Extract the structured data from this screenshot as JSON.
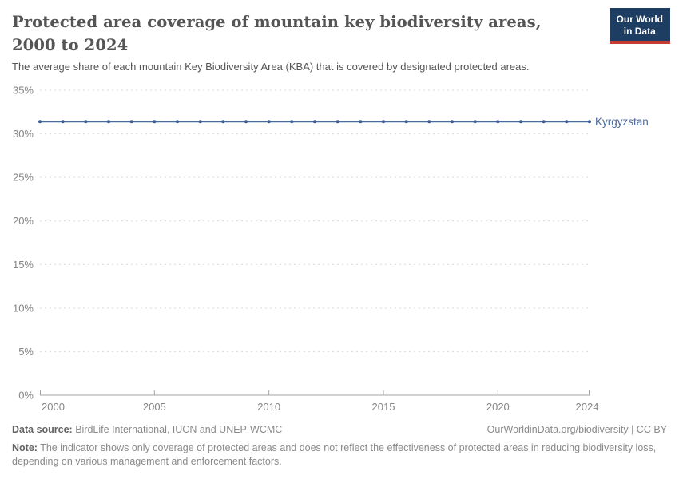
{
  "header": {
    "title": "Protected area coverage of mountain key biodiversity areas, 2000 to 2024",
    "subtitle": "The average share of each mountain Key Biodiversity Area (KBA) that is covered by designated protected areas.",
    "logo": {
      "line1": "Our World",
      "line2": "in Data"
    }
  },
  "chart_data": {
    "type": "line",
    "title": "Protected area coverage of mountain key biodiversity areas, 2000 to 2024",
    "xlabel": "",
    "ylabel": "",
    "x": [
      2000,
      2001,
      2002,
      2003,
      2004,
      2005,
      2006,
      2007,
      2008,
      2009,
      2010,
      2011,
      2012,
      2013,
      2014,
      2015,
      2016,
      2017,
      2018,
      2019,
      2020,
      2021,
      2022,
      2023,
      2024
    ],
    "series": [
      {
        "name": "Kyrgyzstan",
        "values": [
          31.4,
          31.4,
          31.4,
          31.4,
          31.4,
          31.4,
          31.4,
          31.4,
          31.4,
          31.4,
          31.4,
          31.4,
          31.4,
          31.4,
          31.4,
          31.4,
          31.4,
          31.4,
          31.4,
          31.4,
          31.4,
          31.4,
          31.4,
          31.4,
          31.4
        ]
      }
    ],
    "ylim": [
      0,
      35
    ],
    "yticks": [
      0,
      5,
      10,
      15,
      20,
      25,
      30,
      35
    ],
    "ytick_suffix": "%",
    "xticks": [
      2000,
      2005,
      2010,
      2015,
      2020,
      2024
    ],
    "grid": "horizontal-dashed",
    "legend_position": "line-end-label"
  },
  "footer": {
    "source_label": "Data source:",
    "source_text": " BirdLife International, IUCN and UNEP-WCMC",
    "rights": "OurWorldinData.org/biodiversity | CC BY",
    "note_label": "Note:",
    "note_text": " The indicator shows only coverage of protected areas and does not reflect the effectiveness of protected areas in reducing biodiversity loss, depending on various management and enforcement factors."
  },
  "colors": {
    "line": "#4c6a9c",
    "marker": "#3e5c96",
    "grid": "#d9d9d9",
    "axis": "#a5a5a5",
    "tick_text": "#858585",
    "title_text": "#555555",
    "logo_navy": "#1d3d63",
    "logo_red": "#c63d31"
  }
}
